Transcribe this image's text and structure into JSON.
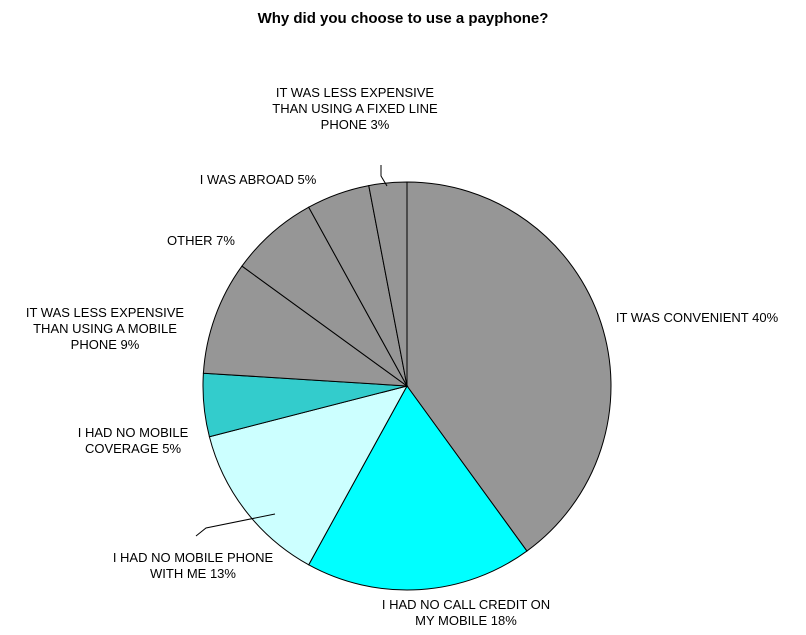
{
  "chart_data": {
    "type": "pie",
    "title": "Why did you choose to use a payphone?",
    "slices": [
      {
        "label": [
          "IT WAS CONVENIENT 40%"
        ],
        "value": 40,
        "color": "#969696"
      },
      {
        "label": [
          "I HAD NO CALL CREDIT ON",
          "MY MOBILE 18%"
        ],
        "value": 18,
        "color": "#00ffff"
      },
      {
        "label": [
          "I HAD NO MOBILE PHONE",
          "WITH ME 13%"
        ],
        "value": 13,
        "color": "#ccffff"
      },
      {
        "label": [
          "I HAD NO MOBILE",
          "COVERAGE 5%"
        ],
        "value": 5,
        "color": "#33cccc"
      },
      {
        "label": [
          "IT WAS LESS EXPENSIVE",
          "THAN USING A MOBILE",
          "PHONE 9%"
        ],
        "value": 9,
        "color": "#969696"
      },
      {
        "label": [
          "OTHER 7%"
        ],
        "value": 7,
        "color": "#969696"
      },
      {
        "label": [
          "I WAS ABROAD 5%"
        ],
        "value": 5,
        "color": "#969696"
      },
      {
        "label": [
          "IT WAS LESS EXPENSIVE",
          "THAN USING A FIXED LINE",
          "PHONE 3%"
        ],
        "value": 3,
        "color": "#969696"
      }
    ]
  }
}
